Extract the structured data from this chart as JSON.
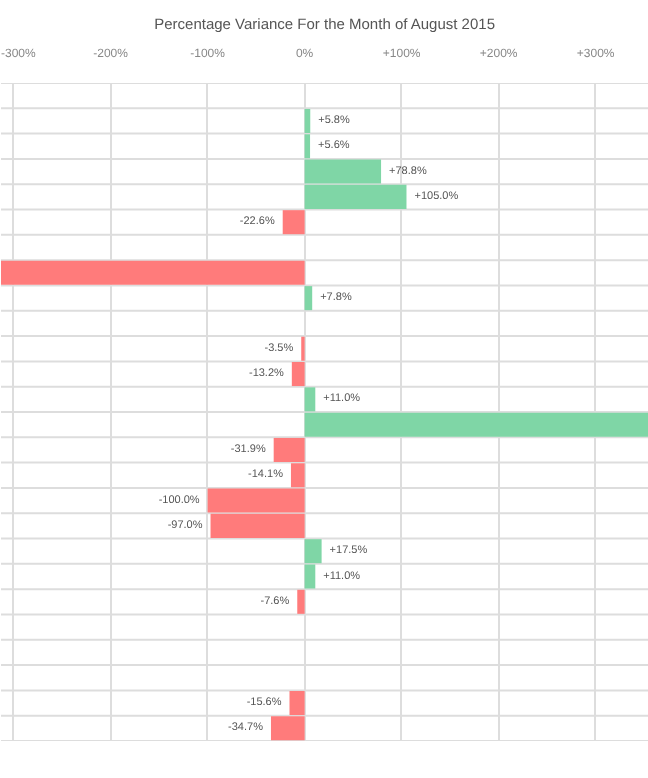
{
  "chart_data": {
    "type": "bar",
    "orientation": "horizontal",
    "title": "Percentage Variance For the Month of August 2015",
    "categories": [
      null,
      null,
      null,
      null,
      null,
      null,
      null,
      null,
      null,
      null,
      null,
      null,
      null,
      null,
      null,
      null,
      null,
      null,
      null,
      null,
      null,
      null,
      null,
      null,
      null,
      null
    ],
    "values": [
      null,
      5.8,
      5.6,
      78.8,
      105.0,
      -22.6,
      null,
      -313,
      7.8,
      null,
      -3.5,
      -13.2,
      11.0,
      355,
      -31.9,
      -14.1,
      -100.0,
      -97.0,
      17.5,
      11.0,
      -7.6,
      null,
      null,
      null,
      -15.6,
      -34.7
    ],
    "value_labels": [
      null,
      "+5.8%",
      "+5.6%",
      "+78.8%",
      "+105.0%",
      "-22.6%",
      null,
      null,
      "+7.8%",
      null,
      "-3.5%",
      "-13.2%",
      "+11.0%",
      null,
      "-31.9%",
      "-14.1%",
      "-100.0%",
      "-97.0%",
      "+17.5%",
      "+11.0%",
      "-7.6%",
      null,
      null,
      null,
      "-15.6%",
      "-34.7%"
    ],
    "colors": [
      null,
      "#7fd6a6",
      "#7fd6a6",
      "#7fd6a6",
      "#7fd6a6",
      "#ff7b7b",
      null,
      "#ff7b7b",
      "#7fd6a6",
      null,
      "#ff7b7b",
      "#ff7b7b",
      "#7fd6a6",
      "#7fd6a6",
      "#ff7b7b",
      "#ff7b7b",
      "#ff7b7b",
      "#ff7b7b",
      "#7fd6a6",
      "#7fd6a6",
      "#ff7b7b",
      null,
      null,
      null,
      "#ff7b7b",
      "#ff7b7b"
    ],
    "xlim": [
      -313,
      355
    ],
    "xticks": [
      {
        "value": -300,
        "label": "-300%"
      },
      {
        "value": -200,
        "label": "-200%"
      },
      {
        "value": -100,
        "label": "-100%"
      },
      {
        "value": 0,
        "label": "0%"
      },
      {
        "value": 100,
        "label": "+100%"
      },
      {
        "value": 200,
        "label": "+200%"
      },
      {
        "value": 300,
        "label": "+300%"
      }
    ],
    "tick_labels": "x",
    "grid": true
  }
}
